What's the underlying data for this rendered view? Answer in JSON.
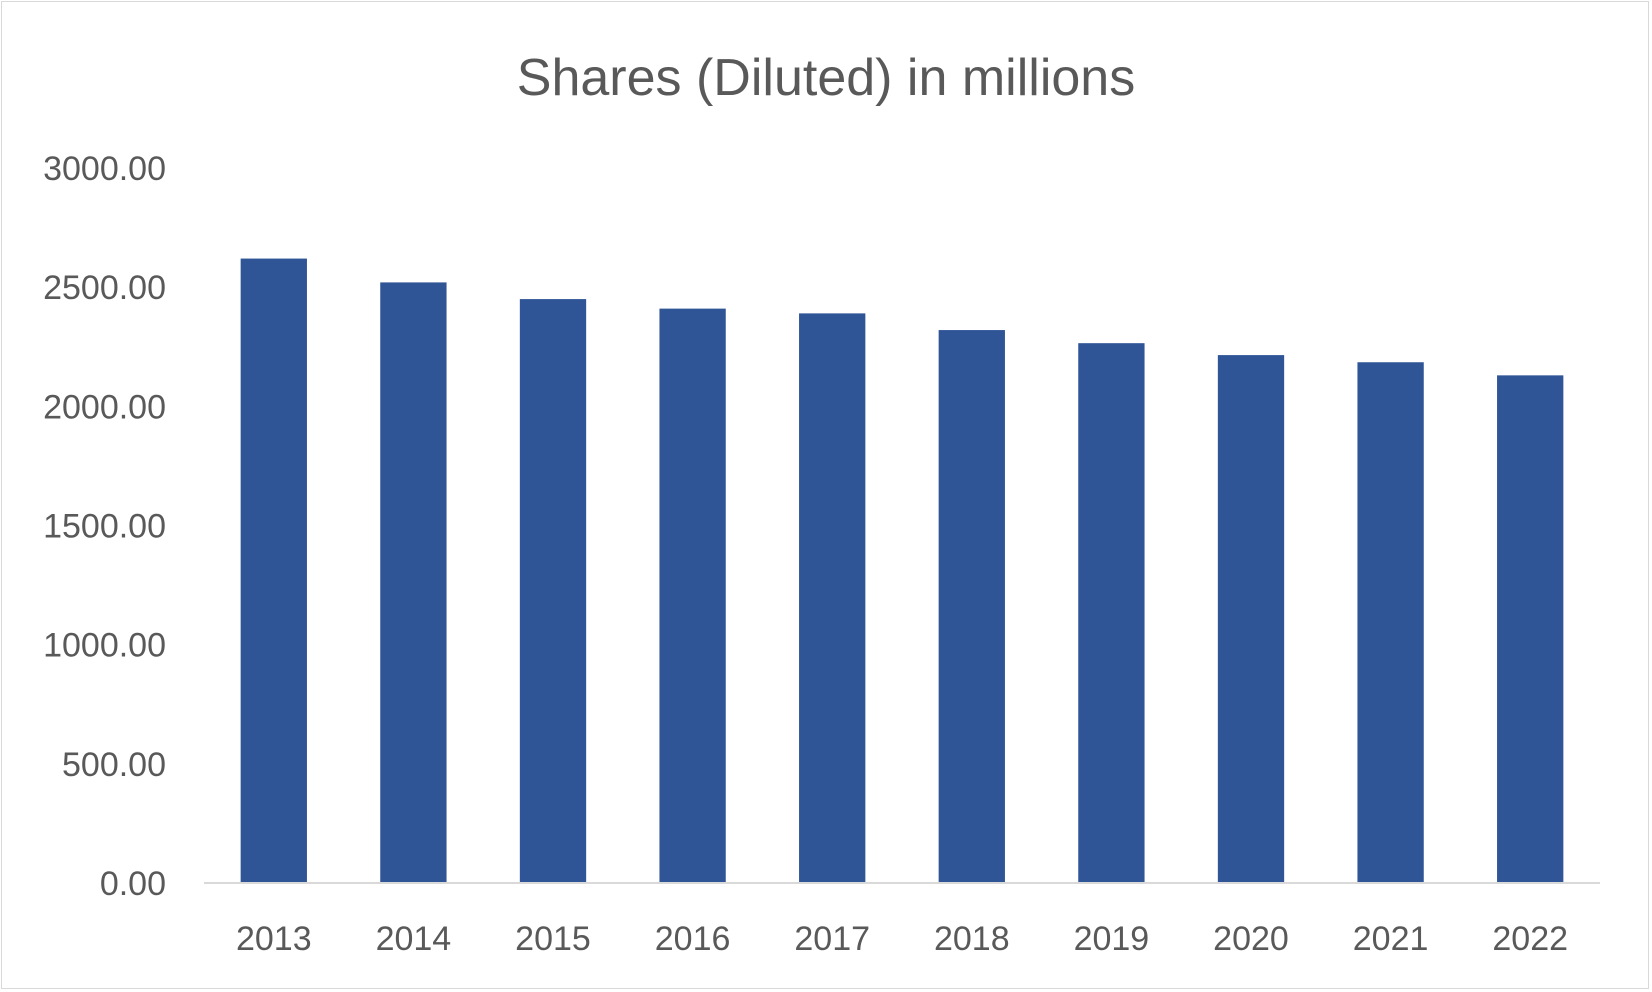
{
  "chart_data": {
    "type": "bar",
    "title": "Shares (Diluted) in millions",
    "xlabel": "",
    "ylabel": "",
    "categories": [
      "2013",
      "2014",
      "2015",
      "2016",
      "2017",
      "2018",
      "2019",
      "2020",
      "2021",
      "2022"
    ],
    "series": [
      {
        "values": [
          2620,
          2520,
          2450,
          2410,
          2390,
          2320,
          2265,
          2215,
          2185,
          2130
        ],
        "color": "#2f5597"
      }
    ],
    "ylim": [
      0,
      3000
    ],
    "yticks": [
      "0.00",
      "500.00",
      "1000.00",
      "1500.00",
      "2000.00",
      "2500.00",
      "3000.00"
    ],
    "grid": false,
    "legend": "none",
    "colors": {
      "bar": "#2f5597",
      "text": "#595959",
      "axis": "#d9d9d9"
    }
  }
}
